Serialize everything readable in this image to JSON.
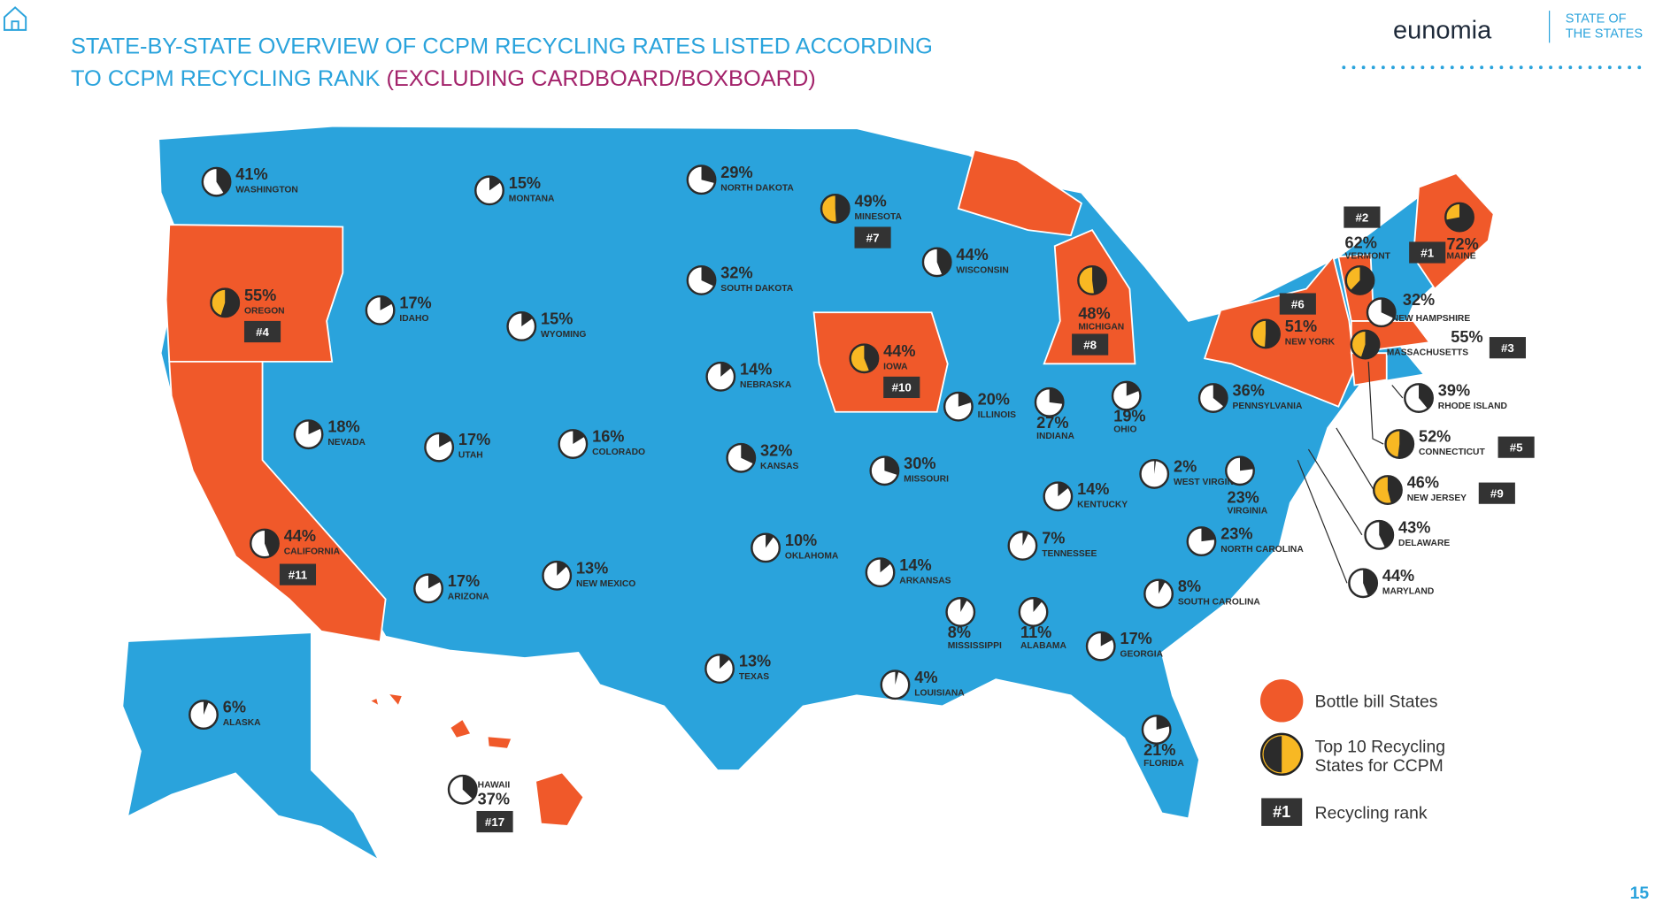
{
  "header": {
    "title_line1": "STATE-BY-STATE OVERVIEW OF CCPM RECYCLING RATES LISTED ACCORDING",
    "title_line2": "TO CCPM RECYCLING RANK ",
    "title_highlight": "(EXCLUDING CARDBOARD/BOXBOARD)",
    "logo": "eunomia",
    "logo_sub1": "STATE OF",
    "logo_sub2": "THE STATES"
  },
  "states": [
    {
      "name": "WASHINGTON",
      "value": 41,
      "label": "41%"
    },
    {
      "name": "MONTANA",
      "value": 15,
      "label": "15%"
    },
    {
      "name": "NORTH DAKOTA",
      "value": 29,
      "label": "29%"
    },
    {
      "name": "MINESOTA",
      "value": 49,
      "label": "49%",
      "top10": true,
      "rank": "#7"
    },
    {
      "name": "WISCONSIN",
      "value": 44,
      "label": "44%"
    },
    {
      "name": "SOUTH DAKOTA",
      "value": 32,
      "label": "32%"
    },
    {
      "name": "OREGON",
      "value": 55,
      "label": "55%",
      "top10": true,
      "rank": "#4"
    },
    {
      "name": "IDAHO",
      "value": 17,
      "label": "17%"
    },
    {
      "name": "WYOMING",
      "value": 15,
      "label": "15%"
    },
    {
      "name": "MICHIGAN",
      "value": 48,
      "label": "48%",
      "top10": true,
      "rank": "#8"
    },
    {
      "name": "NEBRASKA",
      "value": 14,
      "label": "14%"
    },
    {
      "name": "IOWA",
      "value": 44,
      "label": "44%",
      "top10": true,
      "rank": "#10"
    },
    {
      "name": "ILLINOIS",
      "value": 20,
      "label": "20%"
    },
    {
      "name": "INDIANA",
      "value": 27,
      "label": "27%"
    },
    {
      "name": "OHIO",
      "value": 19,
      "label": "19%"
    },
    {
      "name": "PENNSYLVANIA",
      "value": 36,
      "label": "36%"
    },
    {
      "name": "NEVADA",
      "value": 18,
      "label": "18%"
    },
    {
      "name": "UTAH",
      "value": 17,
      "label": "17%"
    },
    {
      "name": "COLORADO",
      "value": 16,
      "label": "16%"
    },
    {
      "name": "KANSAS",
      "value": 32,
      "label": "32%"
    },
    {
      "name": "MISSOURI",
      "value": 30,
      "label": "30%"
    },
    {
      "name": "WEST VIRGINIA",
      "value": 2,
      "label": "2%"
    },
    {
      "name": "VIRGINIA",
      "value": 23,
      "label": "23%"
    },
    {
      "name": "KENTUCKY",
      "value": 14,
      "label": "14%"
    },
    {
      "name": "CALIFORNIA",
      "value": 44,
      "label": "44%",
      "rank": "#11"
    },
    {
      "name": "OKLAHOMA",
      "value": 10,
      "label": "10%"
    },
    {
      "name": "TENNESSEE",
      "value": 7,
      "label": "7%"
    },
    {
      "name": "NORTH CAROLINA",
      "value": 23,
      "label": "23%"
    },
    {
      "name": "ARKANSAS",
      "value": 14,
      "label": "14%"
    },
    {
      "name": "NEW MEXICO",
      "value": 13,
      "label": "13%"
    },
    {
      "name": "ARIZONA",
      "value": 17,
      "label": "17%"
    },
    {
      "name": "SOUTH CAROLINA",
      "value": 8,
      "label": "8%"
    },
    {
      "name": "MISSISSIPPI",
      "value": 8,
      "label": "8%"
    },
    {
      "name": "ALABAMA",
      "value": 11,
      "label": "11%"
    },
    {
      "name": "GEORGIA",
      "value": 17,
      "label": "17%"
    },
    {
      "name": "TEXAS",
      "value": 13,
      "label": "13%"
    },
    {
      "name": "LOUISIANA",
      "value": 4,
      "label": "4%"
    },
    {
      "name": "ALASKA",
      "value": 6,
      "label": "6%"
    },
    {
      "name": "FLORIDA",
      "value": 21,
      "label": "21%"
    },
    {
      "name": "HAWAII",
      "value": 37,
      "label": "37%",
      "rank": "#17"
    },
    {
      "name": "VERMONT",
      "value": 62,
      "label": "62%",
      "top10": true,
      "rank": "#2"
    },
    {
      "name": "MAINE",
      "value": 72,
      "label": "72%",
      "top10": true,
      "rank": "#1"
    },
    {
      "name": "NEW HAMPSHIRE",
      "value": 32,
      "label": "32%"
    },
    {
      "name": "NEW YORK",
      "value": 51,
      "label": "51%",
      "top10": true,
      "rank": "#6"
    },
    {
      "name": "MASSACHUSETTS",
      "value": 55,
      "label": "55%",
      "top10": true,
      "rank": "#3"
    },
    {
      "name": "RHODE ISLAND",
      "value": 39,
      "label": "39%"
    },
    {
      "name": "CONNECTICUT",
      "value": 52,
      "label": "52%",
      "top10": true,
      "rank": "#5"
    },
    {
      "name": "NEW JERSEY",
      "value": 46,
      "label": "46%",
      "top10": true,
      "rank": "#9"
    },
    {
      "name": "DELAWARE",
      "value": 43,
      "label": "43%"
    },
    {
      "name": "MARYLAND",
      "value": 44,
      "label": "44%"
    }
  ],
  "legend": {
    "bottle_bill": "Bottle bill States",
    "top10": "Top 10 Recycling",
    "top10_line2": "States for CCPM",
    "rank_badge": "#1",
    "rank": "Recycling rank"
  },
  "page_number": "15"
}
